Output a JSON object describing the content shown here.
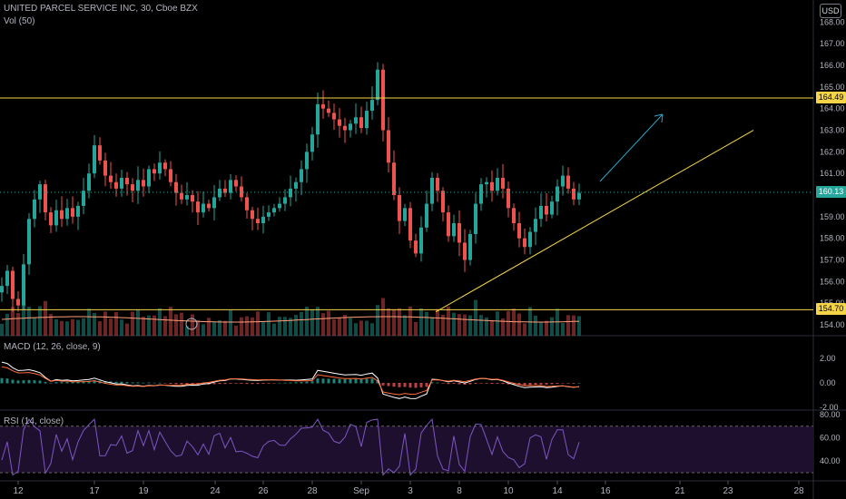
{
  "header": {
    "symbol_title": "UNITED PARCEL SERVICE INC, 30, Cboe BZX",
    "volume_title": "Vol (50)",
    "currency": "USD"
  },
  "macd_pane": {
    "title": "MACD (12, 26, close, 9)"
  },
  "rsi_pane": {
    "title": "RSI (14, close)"
  },
  "price_tags": {
    "resistance": "164.49",
    "current": "160.13",
    "support": "154.70"
  },
  "colors": {
    "up": "#26a69a",
    "down": "#ef5350",
    "level_line": "#f5d547",
    "arrow": "#2aa6c9",
    "current_tag": "#26a69a",
    "rsi_line": "#7e57c2",
    "macd_line": "#ffffff",
    "signal_line": "#ff6d3a"
  },
  "chart_data": {
    "type": "candlestick",
    "price_axis": {
      "ticks": [
        "168.00",
        "167.00",
        "166.00",
        "165.00",
        "164.00",
        "163.00",
        "162.00",
        "161.00",
        "160.00",
        "159.00",
        "158.00",
        "157.00",
        "156.00",
        "155.00",
        "154.00"
      ],
      "range": [
        153.5,
        168.6
      ]
    },
    "time_axis": {
      "ticks": [
        "12",
        "17",
        "19",
        "24",
        "26",
        "28",
        "Sep",
        "3",
        "8",
        "10",
        "14",
        "16",
        "21",
        "23",
        "28"
      ]
    },
    "horizontal_levels": [
      164.49,
      154.7
    ],
    "current_price": 160.13,
    "trendline": {
      "from": {
        "bar_index": 92,
        "price": 154.6
      },
      "to": {
        "x_label_offset": "beyond 23",
        "price": 163.0
      }
    },
    "price_path": [
      155.8,
      156.5,
      155.2,
      154.9,
      156.8,
      158.9,
      159.8,
      160.5,
      159.2,
      158.6,
      159.3,
      158.9,
      159.4,
      159.0,
      159.5,
      160.2,
      161.0,
      162.3,
      161.6,
      160.9,
      160.6,
      160.3,
      160.8,
      160.5,
      160.2,
      160.7,
      160.4,
      161.2,
      161.0,
      161.5,
      161.2,
      160.6,
      160.1,
      159.8,
      160.0,
      159.7,
      159.2,
      159.6,
      159.4,
      159.9,
      160.3,
      160.1,
      160.7,
      160.4,
      159.9,
      159.3,
      158.9,
      158.7,
      159.0,
      159.2,
      159.4,
      159.6,
      159.9,
      160.3,
      160.6,
      161.2,
      162.0,
      162.8,
      164.2,
      164.0,
      163.8,
      163.5,
      163.2,
      163.0,
      163.3,
      163.6,
      163.1,
      163.9,
      164.4,
      165.8,
      163.0,
      161.5,
      160.0,
      158.8,
      159.4,
      157.9,
      157.3,
      158.5,
      159.6,
      160.8,
      160.2,
      159.2,
      158.1,
      158.7,
      157.8,
      157.0,
      158.2,
      159.6,
      160.5,
      160.6,
      160.2,
      160.8,
      160.3,
      159.4,
      158.7,
      158.0,
      157.6,
      158.3,
      158.9,
      159.5,
      159.1,
      159.7,
      160.4,
      160.9,
      160.3,
      159.8,
      160.1
    ],
    "volume_profile_note": "per-bar volume drawn with same colors as candles",
    "macd": {
      "axis_ticks": [
        "2.00",
        "0.00",
        "-2.00"
      ]
    },
    "rsi": {
      "axis_ticks": [
        "80.00",
        "60.00",
        "40.00"
      ],
      "band": [
        30,
        70
      ]
    }
  }
}
